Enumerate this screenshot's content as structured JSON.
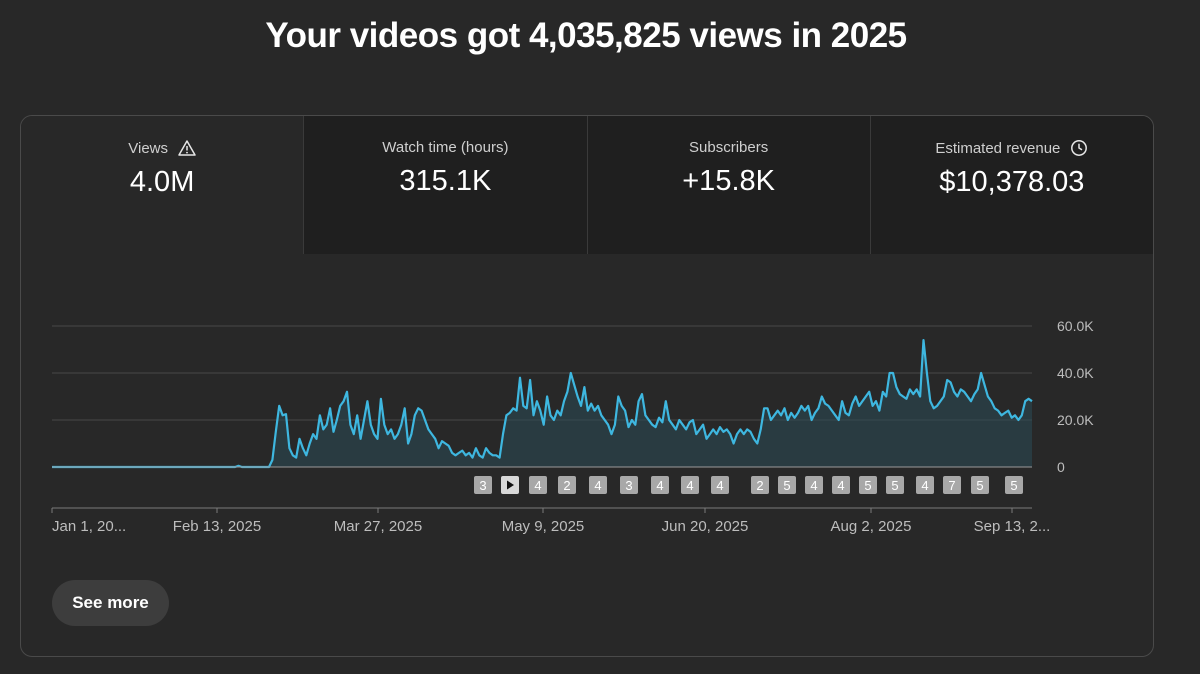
{
  "headline": "Your videos got 4,035,825 views in 2025",
  "metrics": [
    {
      "label": "Views",
      "value": "4.0M",
      "icon": "warning-icon"
    },
    {
      "label": "Watch time (hours)",
      "value": "315.1K",
      "icon": ""
    },
    {
      "label": "Subscribers",
      "value": "+15.8K",
      "icon": ""
    },
    {
      "label": "Estimated revenue",
      "value": "$10,378.03",
      "icon": "clock-icon"
    }
  ],
  "chart_data": {
    "type": "area",
    "series": [
      {
        "values": [
          0,
          0,
          0,
          0,
          0,
          0,
          0,
          0,
          0,
          0,
          0,
          0,
          0,
          0,
          0,
          0,
          0,
          0,
          0,
          0,
          0,
          0,
          0,
          0,
          0,
          0,
          0,
          0,
          0,
          0,
          0,
          0,
          0,
          0,
          0,
          0,
          0,
          0,
          0,
          0,
          0,
          0,
          0,
          0,
          0,
          0,
          0,
          0,
          0,
          0,
          0,
          0,
          0,
          0,
          0,
          500,
          0,
          0,
          0,
          0,
          0,
          0,
          0,
          0,
          0,
          3000,
          15000,
          26000,
          22000,
          22500,
          8000,
          5000,
          4000,
          12000,
          8000,
          5000,
          10000,
          14000,
          12000,
          22000,
          16000,
          18000,
          25000,
          15000,
          20000,
          26000,
          28000,
          32000,
          18000,
          14000,
          22000,
          12000,
          20000,
          28000,
          18000,
          14000,
          12000,
          29000,
          18000,
          14000,
          16000,
          12000,
          14000,
          18000,
          25000,
          10000,
          14000,
          22000,
          25000,
          24000,
          20000,
          16000,
          14000,
          12000,
          8000,
          11000,
          10000,
          9000,
          6000,
          5000,
          6000,
          7000,
          5000,
          6000,
          4000,
          8000,
          5000,
          4000,
          8000,
          6000,
          5000,
          5000,
          4000,
          14000,
          22000,
          23000,
          25000,
          24000,
          38000,
          26000,
          25000,
          37000,
          22000,
          28000,
          24000,
          18000,
          30000,
          22000,
          20000,
          24000,
          22000,
          28000,
          32000,
          40000,
          35000,
          30000,
          26000,
          34000,
          24000,
          27000,
          24000,
          26000,
          22000,
          20000,
          18000,
          14000,
          18000,
          30000,
          26000,
          24000,
          17000,
          20000,
          18000,
          28000,
          31000,
          22000,
          20000,
          18000,
          17000,
          21000,
          19000,
          28000,
          20000,
          18000,
          16000,
          20000,
          18000,
          16000,
          19000,
          20000,
          14000,
          16000,
          18000,
          12000,
          14000,
          16000,
          14000,
          17000,
          15000,
          16000,
          14000,
          10000,
          14000,
          16000,
          14000,
          16000,
          15000,
          12000,
          10000,
          16000,
          25000,
          25000,
          20000,
          22000,
          24000,
          22000,
          25000,
          20000,
          23000,
          21000,
          23000,
          26000,
          24000,
          26000,
          20000,
          23000,
          25000,
          30000,
          27000,
          26000,
          24000,
          22000,
          20000,
          28000,
          23000,
          22000,
          27000,
          30000,
          26000,
          28000,
          30000,
          32000,
          26000,
          28000,
          24000,
          32000,
          30000,
          40000,
          40000,
          34000,
          31000,
          30000,
          29000,
          33000,
          31000,
          33000,
          30000,
          54000,
          40000,
          28000,
          25000,
          26000,
          28000,
          30000,
          37000,
          36000,
          32000,
          30000,
          33000,
          32000,
          30000,
          28000,
          31000,
          33000,
          40000,
          35000,
          30000,
          28000,
          25000,
          24000,
          22000,
          23000,
          24000,
          21000,
          22000,
          20000,
          22000,
          28000,
          29000,
          28000
        ]
      }
    ],
    "y_ticks": [
      "60.0K",
      "40.0K",
      "20.0K",
      "0"
    ],
    "ylim": [
      0,
      60000
    ],
    "x_ticks": [
      "Jan 1, 20...",
      "Feb 13, 2025",
      "Mar 27, 2025",
      "May 9, 2025",
      "Jun 20, 2025",
      "Aug 2, 2025",
      "Sep 13, 2..."
    ],
    "markers": [
      "3",
      "play",
      "4",
      "2",
      "4",
      "3",
      "4",
      "4",
      "4",
      "2",
      "5",
      "4",
      "4",
      "5",
      "5",
      "4",
      "7",
      "5",
      "5"
    ],
    "line_color": "#3eb7e0",
    "fill_color": "#2a4a55"
  },
  "see_more": "See more"
}
